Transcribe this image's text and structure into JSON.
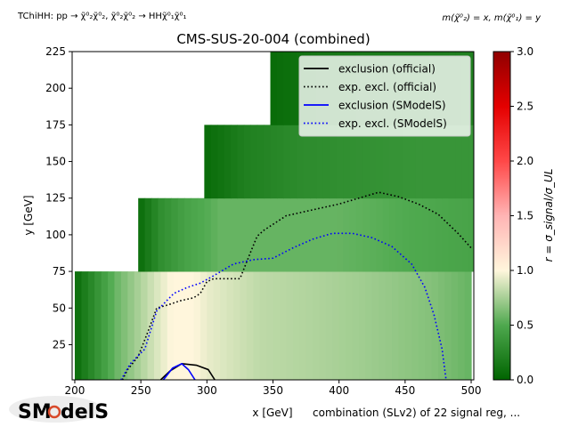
{
  "top_left_label": "TChiHH: pp → χ̃⁰₂χ̃⁰₂, χ̃⁰₂χ̃⁰₂ → HHχ̃⁰₁χ̃⁰₁",
  "top_right_label": "m(χ̃⁰₂) = x, m(χ̃⁰₁) = y",
  "footer_label": "combination (SLv2) of 22 signal reg, ...",
  "logo_text": "SModelS",
  "colors": {
    "official": "#000000",
    "smodels": "#0000ff",
    "heat_low": "#006400",
    "heat_mid": "#fff6dc",
    "heat_high": "#ff0000"
  },
  "chart_data": {
    "type": "heatmap",
    "title": "CMS-SUS-20-004 (combined)",
    "xlabel": "x [GeV]",
    "ylabel": "y [GeV]",
    "xlim": [
      198,
      502
    ],
    "ylim": [
      1,
      225
    ],
    "xticks": [
      200,
      250,
      300,
      350,
      400,
      450,
      500
    ],
    "yticks": [
      25,
      50,
      75,
      100,
      125,
      150,
      175,
      200,
      225
    ],
    "colorbar": {
      "label": "r = σ_signal/σ_UL",
      "range": [
        0,
        3
      ],
      "ticks": [
        0.0,
        0.5,
        1.0,
        1.5,
        2.0,
        2.5,
        3.0
      ]
    },
    "legend_placement": "top-right",
    "legend": [
      {
        "label": "exclusion (official)",
        "color": "#000000",
        "style": "solid"
      },
      {
        "label": "exp. excl. (official)",
        "color": "#000000",
        "style": "dotted"
      },
      {
        "label": "exclusion (SModelS)",
        "color": "#0000ff",
        "style": "solid"
      },
      {
        "label": "exp. excl. (SModelS)",
        "color": "#0000ff",
        "style": "dotted"
      }
    ],
    "regions": [
      {
        "y": [
          1,
          75
        ],
        "x": [
          200,
          500
        ],
        "r_at_x": [
          [
            200,
            0.05
          ],
          [
            215,
            0.3
          ],
          [
            230,
            0.55
          ],
          [
            260,
            0.8
          ],
          [
            280,
            0.95
          ],
          [
            300,
            0.85
          ],
          [
            340,
            0.75
          ],
          [
            380,
            0.72
          ],
          [
            420,
            0.68
          ],
          [
            470,
            0.62
          ],
          [
            500,
            0.55
          ]
        ]
      },
      {
        "y": [
          75,
          125
        ],
        "x": [
          248,
          500
        ],
        "r_at_x": [
          [
            248,
            0.05
          ],
          [
            265,
            0.3
          ],
          [
            285,
            0.45
          ],
          [
            310,
            0.55
          ],
          [
            350,
            0.55
          ],
          [
            400,
            0.55
          ],
          [
            450,
            0.5
          ],
          [
            500,
            0.45
          ]
        ]
      },
      {
        "y": [
          125,
          175
        ],
        "x": [
          298,
          500
        ],
        "r_at_x": [
          [
            298,
            0.05
          ],
          [
            330,
            0.2
          ],
          [
            370,
            0.28
          ],
          [
            420,
            0.32
          ],
          [
            460,
            0.35
          ],
          [
            500,
            0.35
          ]
        ]
      },
      {
        "y": [
          175,
          225
        ],
        "x": [
          348,
          500
        ],
        "r_at_x": [
          [
            348,
            0.05
          ],
          [
            380,
            0.12
          ],
          [
            420,
            0.16
          ],
          [
            460,
            0.18
          ],
          [
            500,
            0.2
          ]
        ]
      }
    ],
    "series": [
      {
        "name": "exclusion (official)",
        "x": [
          265,
          272,
          281,
          292,
          301,
          306
        ],
        "y": [
          1,
          7,
          12,
          11,
          8,
          1
        ]
      },
      {
        "name": "exp. excl. (official)",
        "x": [
          236,
          240,
          248,
          255,
          262,
          270,
          280,
          290,
          295,
          300,
          305,
          325,
          333,
          338,
          343,
          360,
          380,
          400,
          415,
          430,
          445,
          460,
          475,
          490,
          500
        ],
        "y": [
          1,
          8,
          17,
          33,
          50,
          52,
          55,
          57,
          60,
          68,
          70,
          70,
          88,
          99,
          103,
          113,
          117,
          121,
          125,
          129,
          126,
          121,
          114,
          101,
          91
        ]
      },
      {
        "name": "exclusion (SModelS)",
        "x": [
          267,
          274,
          281,
          286,
          291
        ],
        "y": [
          1,
          9,
          12,
          8,
          1
        ]
      },
      {
        "name": "exp. excl. (SModelS)",
        "x": [
          235,
          242,
          253,
          262,
          275,
          285,
          295,
          305,
          320,
          335,
          350,
          365,
          380,
          395,
          410,
          425,
          440,
          455,
          465,
          472,
          478,
          481
        ],
        "y": [
          1,
          12,
          22,
          48,
          60,
          64,
          67,
          72,
          80,
          83,
          84,
          91,
          97,
          101,
          101,
          98,
          92,
          80,
          64,
          45,
          22,
          1
        ]
      }
    ]
  }
}
